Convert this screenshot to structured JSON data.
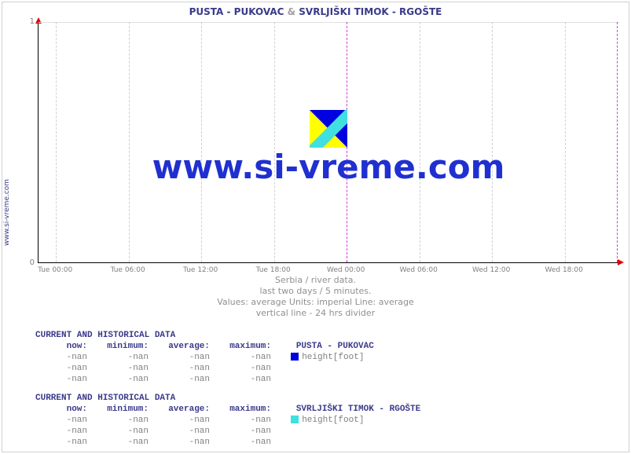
{
  "side_label": "www.si-vreme.com",
  "title": {
    "s1": "PUSTA -  PUKOVAC",
    "amp": "&",
    "s2": "SVRLJIŠKI TIMOK -  RGOŠTE"
  },
  "chart": {
    "type": "line",
    "ylim": [
      0,
      1
    ],
    "yticks": [
      {
        "v": 0,
        "label": "0"
      },
      {
        "v": 1,
        "label": "1"
      }
    ],
    "xticks": [
      {
        "pos": 0.03,
        "label": "Tue 00:00"
      },
      {
        "pos": 0.155,
        "label": "Tue 06:00"
      },
      {
        "pos": 0.28,
        "label": "Tue 12:00"
      },
      {
        "pos": 0.405,
        "label": "Tue 18:00"
      },
      {
        "pos": 0.53,
        "label": "Wed 00:00"
      },
      {
        "pos": 0.655,
        "label": "Wed 06:00"
      },
      {
        "pos": 0.78,
        "label": "Wed 12:00"
      },
      {
        "pos": 0.905,
        "label": "Wed 18:00"
      }
    ],
    "vgrid": [
      0.03,
      0.155,
      0.28,
      0.405,
      0.53,
      0.655,
      0.78,
      0.905
    ],
    "hgrid": [
      1
    ],
    "dividers": [
      0.53,
      0.995
    ],
    "grid_color": "#e0e0e0",
    "divider_color": "#d040d0",
    "arrow_color": "#e00000",
    "background_color": "#ffffff"
  },
  "watermark": {
    "text": "www.si-vreme.com",
    "icon_colors": {
      "tri1": "#ffff00",
      "tri2": "#0000e0",
      "diag": "#40e0e0"
    }
  },
  "subtitle": {
    "l1": "Serbia / river data.",
    "l2": "last two days / 5 minutes.",
    "l3": "Values: average  Units: imperial  Line: average",
    "l4": "vertical line - 24 hrs  divider"
  },
  "tables": [
    {
      "header": "CURRENT AND HISTORICAL DATA",
      "cols": [
        "now:",
        "minimum:",
        "average:",
        "maximum:"
      ],
      "station": "PUSTA -  PUKOVAC",
      "swatch": "#0000e0",
      "metric": "height[foot]",
      "rows": [
        [
          "-nan",
          "-nan",
          "-nan",
          "-nan"
        ],
        [
          "-nan",
          "-nan",
          "-nan",
          "-nan"
        ],
        [
          "-nan",
          "-nan",
          "-nan",
          "-nan"
        ]
      ]
    },
    {
      "header": "CURRENT AND HISTORICAL DATA",
      "cols": [
        "now:",
        "minimum:",
        "average:",
        "maximum:"
      ],
      "station": "SVRLJIŠKI TIMOK -  RGOŠTE",
      "swatch": "#40e0e0",
      "metric": "height[foot]",
      "rows": [
        [
          "-nan",
          "-nan",
          "-nan",
          "-nan"
        ],
        [
          "-nan",
          "-nan",
          "-nan",
          "-nan"
        ],
        [
          "-nan",
          "-nan",
          "-nan",
          "-nan"
        ]
      ]
    }
  ]
}
